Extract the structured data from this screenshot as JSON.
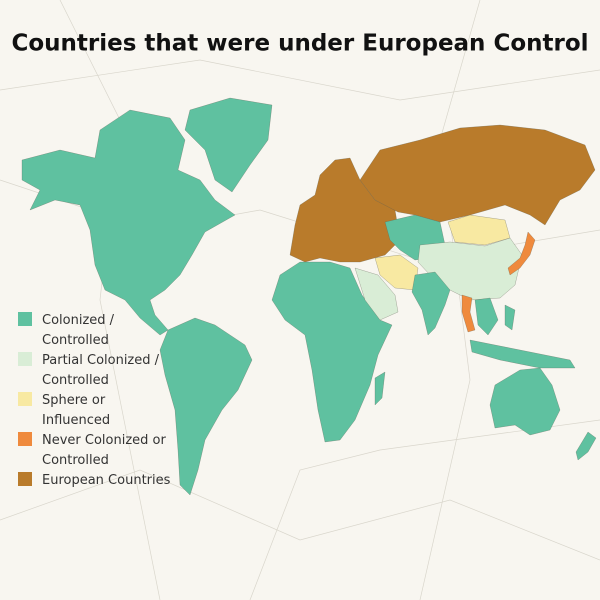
{
  "title": "Countries that were under European Control",
  "legend": {
    "items": [
      {
        "lines": [
          "Colonized /",
          "Controlled"
        ],
        "color": "#5fc1a0"
      },
      {
        "lines": [
          "Partial Colonized /",
          "Controlled"
        ],
        "color": "#d9edd6"
      },
      {
        "lines": [
          "Sphere or",
          "Influenced"
        ],
        "color": "#f8e9a2"
      },
      {
        "lines": [
          "Never Colonized or",
          "Controlled"
        ],
        "color": "#ef8a3d"
      },
      {
        "lines": [
          "European Countries"
        ],
        "color": "#b97b2b"
      }
    ]
  }
}
